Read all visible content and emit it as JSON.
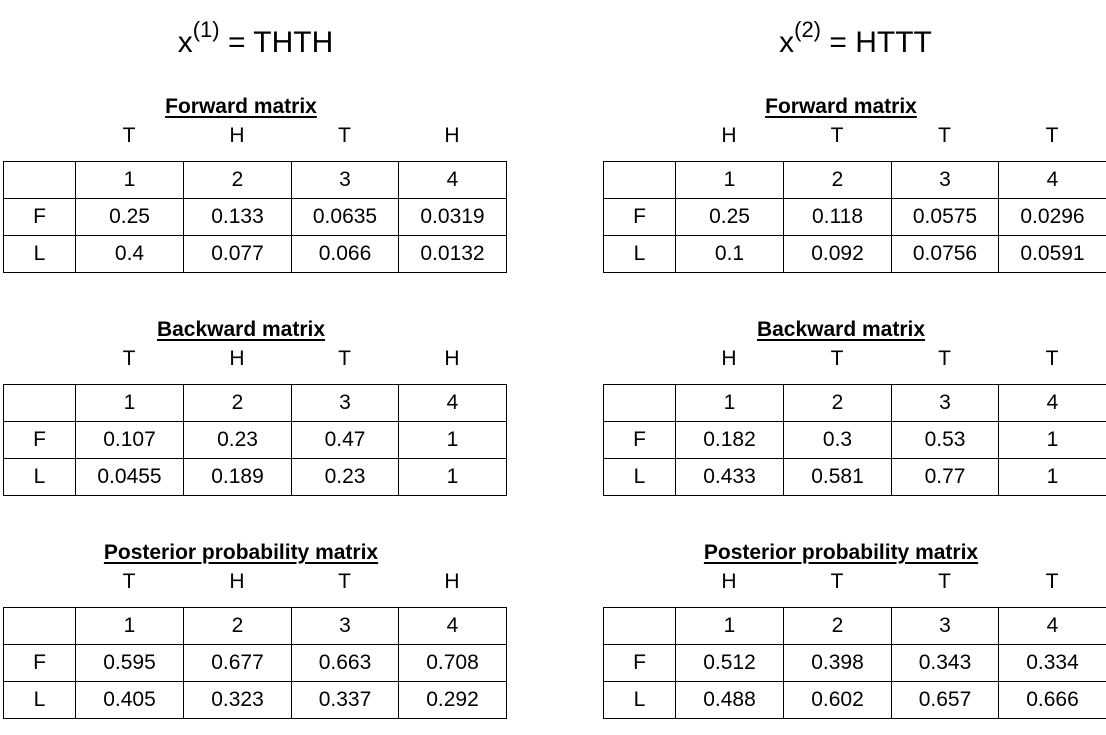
{
  "panels": [
    {
      "var": "x",
      "index": "(1)",
      "equals": "= THTH",
      "sequence": [
        "T",
        "H",
        "T",
        "H"
      ],
      "columns": [
        "1",
        "2",
        "3",
        "4"
      ],
      "forward": {
        "title": "Forward matrix",
        "rows": [
          {
            "label": "F",
            "values": [
              "0.25",
              "0.133",
              "0.0635",
              "0.0319"
            ]
          },
          {
            "label": "L",
            "values": [
              "0.4",
              "0.077",
              "0.066",
              "0.0132"
            ]
          }
        ]
      },
      "backward": {
        "title": "Backward matrix",
        "rows": [
          {
            "label": "F",
            "values": [
              "0.107",
              "0.23",
              "0.47",
              "1"
            ]
          },
          {
            "label": "L",
            "values": [
              "0.0455",
              "0.189",
              "0.23",
              "1"
            ]
          }
        ]
      },
      "posterior": {
        "title": "Posterior probability matrix",
        "rows": [
          {
            "label": "F",
            "values": [
              "0.595",
              "0.677",
              "0.663",
              "0.708"
            ]
          },
          {
            "label": "L",
            "values": [
              "0.405",
              "0.323",
              "0.337",
              "0.292"
            ]
          }
        ]
      }
    },
    {
      "var": "x",
      "index": "(2)",
      "equals": "= HTTT",
      "sequence": [
        "H",
        "T",
        "T",
        "T"
      ],
      "columns": [
        "1",
        "2",
        "3",
        "4"
      ],
      "forward": {
        "title": "Forward matrix",
        "rows": [
          {
            "label": "F",
            "values": [
              "0.25",
              "0.118",
              "0.0575",
              "0.0296"
            ]
          },
          {
            "label": "L",
            "values": [
              "0.1",
              "0.092",
              "0.0756",
              "0.0591"
            ]
          }
        ]
      },
      "backward": {
        "title": "Backward matrix",
        "rows": [
          {
            "label": "F",
            "values": [
              "0.182",
              "0.3",
              "0.53",
              "1"
            ]
          },
          {
            "label": "L",
            "values": [
              "0.433",
              "0.581",
              "0.77",
              "1"
            ]
          }
        ]
      },
      "posterior": {
        "title": "Posterior probability matrix",
        "rows": [
          {
            "label": "F",
            "values": [
              "0.512",
              "0.398",
              "0.343",
              "0.334"
            ]
          },
          {
            "label": "L",
            "values": [
              "0.488",
              "0.602",
              "0.657",
              "0.666"
            ]
          }
        ]
      }
    }
  ]
}
